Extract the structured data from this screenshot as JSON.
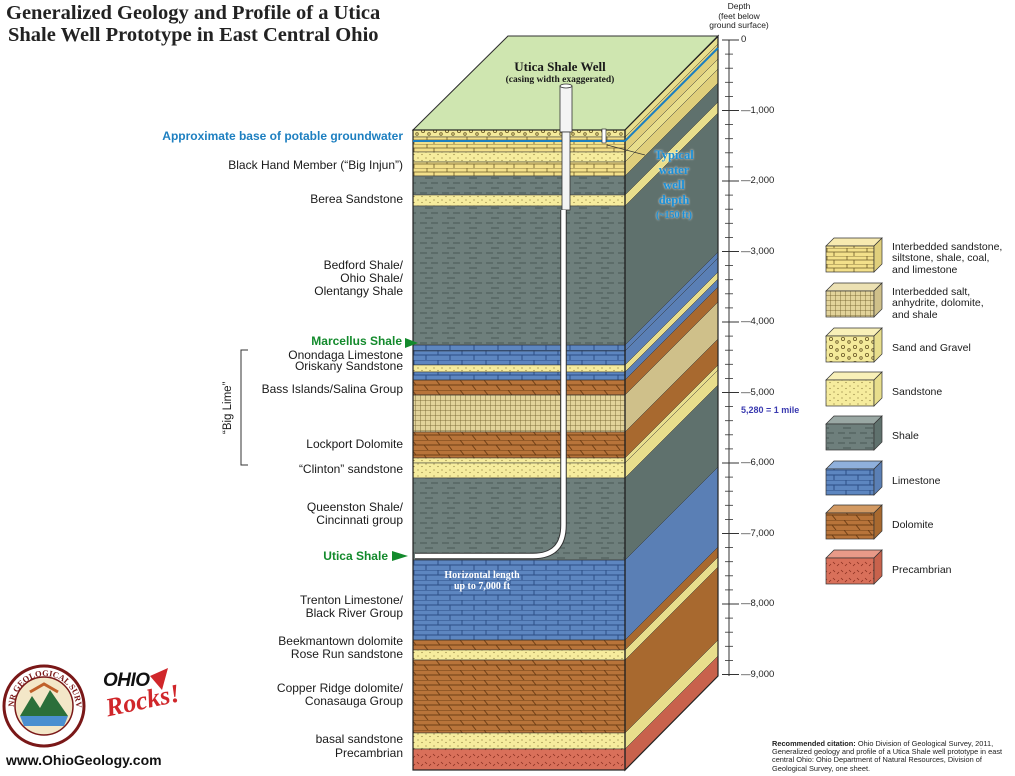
{
  "title": {
    "line1": "Generalized Geology and Profile of a Utica",
    "line2": "Shale Well Prototype in East Central Ohio"
  },
  "depth_header": {
    "line1": "Depth",
    "line2": "(feet below",
    "line3": "ground surface)"
  },
  "depth_ticks": [
    "0",
    "1,000",
    "2,000",
    "3,000",
    "4,000",
    "5,000",
    "6,000",
    "7,000",
    "8,000",
    "9,000"
  ],
  "mile_marker": "5,280 = 1 mile",
  "well": {
    "title": "Utica Shale Well",
    "subtitle": "(casing width exaggerated)"
  },
  "water_well": {
    "line1": "Typical",
    "line2": "water",
    "line3": "well",
    "line4": "depth",
    "line5": "(~150 ft)"
  },
  "horizontal": {
    "line1": "Horizontal length",
    "line2": "up to 7,000 ft"
  },
  "labels": {
    "groundwater": "Approximate base of potable groundwater",
    "black_hand": "Black Hand Member (“Big Injun”)",
    "berea": "Berea Sandstone",
    "bedford_1": "Bedford Shale/",
    "bedford_2": "Ohio Shale/",
    "bedford_3": "Olentangy Shale",
    "marcellus": "Marcellus Shale",
    "onondaga": "Onondaga Limestone",
    "oriskany": "Oriskany Sandstone",
    "bass": "Bass Islands/Salina Group",
    "lockport": "Lockport Dolomite",
    "clinton": "“Clinton” sandstone",
    "queenston_1": "Queenston Shale/",
    "queenston_2": "Cincinnati group",
    "utica": "Utica Shale",
    "trenton_1": "Trenton Limestone/",
    "trenton_2": "Black River Group",
    "beekmantown_1": "Beekmantown dolomite",
    "beekmantown_2": "Rose Run sandstone",
    "copper_1": "Copper Ridge dolomite/",
    "copper_2": "Conasauga Group",
    "basal": "basal sandstone",
    "precambrian": "Precambrian",
    "big_lime": "“Big Lime”"
  },
  "legend": [
    {
      "key": "interbedded_sandstone",
      "lines": [
        "Interbedded sandstone,",
        "siltstone, shale, coal,",
        "and limestone"
      ],
      "color": "#f3e08a"
    },
    {
      "key": "interbedded_salt",
      "lines": [
        "Interbedded salt,",
        "anhydrite, dolomite,",
        "and shale"
      ],
      "color": "#d9c98a"
    },
    {
      "key": "sand_gravel",
      "lines": [
        "Sand and Gravel"
      ],
      "color": "#f4ea9a"
    },
    {
      "key": "sandstone",
      "lines": [
        "Sandstone"
      ],
      "color": "#f6ec9d"
    },
    {
      "key": "shale",
      "lines": [
        "Shale"
      ],
      "color": "#6e7f7c"
    },
    {
      "key": "limestone",
      "lines": [
        "Limestone"
      ],
      "color": "#5d86c0"
    },
    {
      "key": "dolomite",
      "lines": [
        "Dolomite"
      ],
      "color": "#b8743a"
    },
    {
      "key": "precambrian",
      "lines": [
        "Precambrian"
      ],
      "color": "#d9705a"
    }
  ],
  "citation": {
    "bold": "Recommended citation:",
    "text": "Ohio Division of Geological Survey, 2011, Generalized geology and profile of a Utica Shale well prototype in east central Ohio: Ohio Department of Natural Resources, Division of Geological Survey, one sheet."
  },
  "website": "www.OhioGeology.com",
  "logo_odnr": "ODNR GEOLOGICAL SURVEY",
  "logo_ohio": {
    "top": "OHIO",
    "bottom": "Rocks!"
  },
  "colors": {
    "shale": "#6e7f7c",
    "shale_side": "#5f716d",
    "limestone": "#5d86c0",
    "dolomite": "#b8743a",
    "sandstone": "#f6ec9d",
    "precambrian": "#d9705a",
    "top_surface": "#cfe6b0",
    "groundwater": "#1d7fc0",
    "green_label": "#138a2c"
  }
}
